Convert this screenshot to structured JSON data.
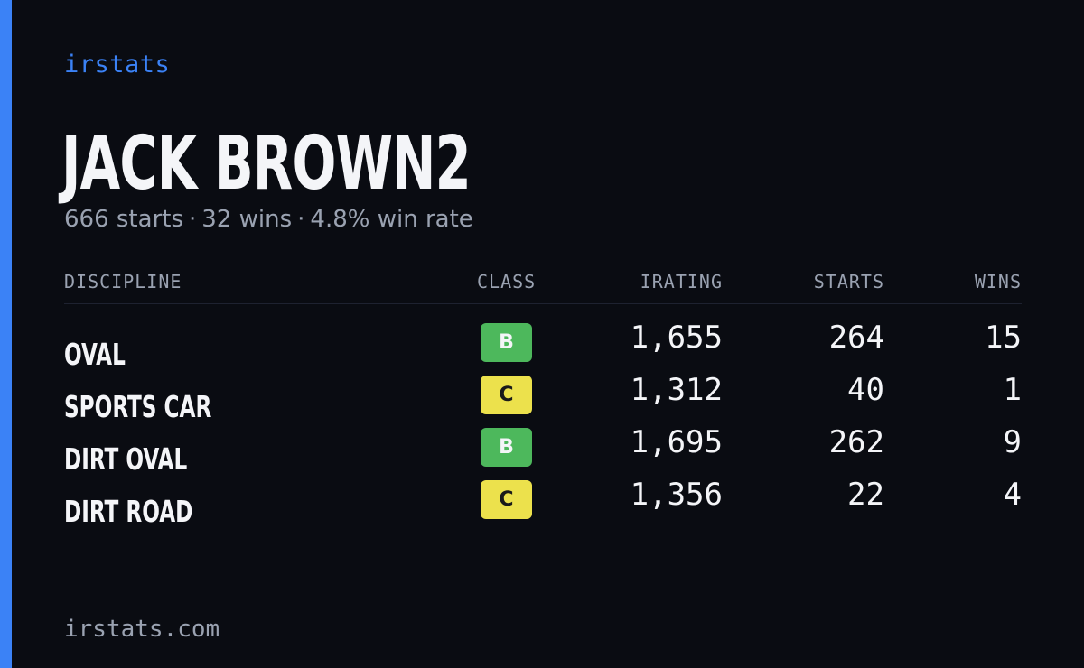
{
  "brand": "irstats",
  "driver": {
    "name": "JACK BROWN2"
  },
  "summary": {
    "starts": "666 starts",
    "wins": "32 wins",
    "win_rate": "4.8% win rate",
    "separator": "·"
  },
  "table": {
    "headers": {
      "discipline": "DISCIPLINE",
      "class": "CLASS",
      "irating": "IRATING",
      "starts": "STARTS",
      "wins": "WINS"
    },
    "rows": [
      {
        "discipline": "OVAL",
        "class": "B",
        "irating": "1,655",
        "starts": "264",
        "wins": "15"
      },
      {
        "discipline": "SPORTS CAR",
        "class": "C",
        "irating": "1,312",
        "starts": "40",
        "wins": "1"
      },
      {
        "discipline": "DIRT OVAL",
        "class": "B",
        "irating": "1,695",
        "starts": "262",
        "wins": "9"
      },
      {
        "discipline": "DIRT ROAD",
        "class": "C",
        "irating": "1,356",
        "starts": "22",
        "wins": "4"
      }
    ]
  },
  "footer": "irstats.com",
  "colors": {
    "background": "#0a0c12",
    "accent": "#3b82f6",
    "class_b": "#4db85c",
    "class_c": "#ece14c",
    "muted_text": "#9aa2b1",
    "primary_text": "#f4f5f8"
  }
}
